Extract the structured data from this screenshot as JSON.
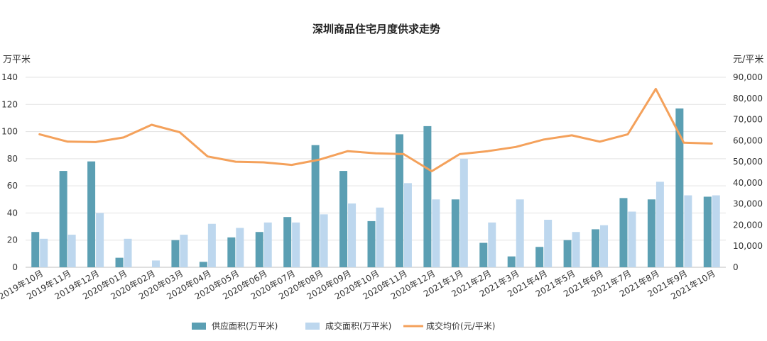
{
  "chart_data": {
    "type": "bar",
    "title": "深圳商品住宅月度供求走势",
    "y_left_unit": "万平米",
    "y_right_unit": "元/平米",
    "y_left_ticks": [
      "0",
      "20",
      "40",
      "60",
      "80",
      "100",
      "120",
      "140"
    ],
    "y_right_ticks": [
      "0",
      "10,000",
      "20,000",
      "30,000",
      "40,000",
      "50,000",
      "60,000",
      "70,000",
      "80,000",
      "90,000"
    ],
    "ylim_left": [
      0,
      140
    ],
    "ylim_right": [
      0,
      90000
    ],
    "categories": [
      "2019年10月",
      "2019年11月",
      "2019年12月",
      "2020年01月",
      "2020年02月",
      "2020年03月",
      "2020年04月",
      "2020年05月",
      "2020年06月",
      "2020年07月",
      "2020年08月",
      "2020年09月",
      "2020年10月",
      "2020年11月",
      "2020年12月",
      "2021年1月",
      "2021年2月",
      "2021年3月",
      "2021年4月",
      "2021年5月",
      "2021年6月",
      "2021年7月",
      "2021年8月",
      "2021年9月",
      "2021年10月"
    ],
    "series": [
      {
        "name": "供应面积(万平米)",
        "type": "bar",
        "axis": "left",
        "color": "#5b9fb3",
        "values": [
          26,
          71,
          78,
          7,
          0,
          20,
          4,
          22,
          26,
          37,
          90,
          71,
          34,
          98,
          104,
          50,
          18,
          8,
          15,
          20,
          28,
          51,
          50,
          117,
          52
        ]
      },
      {
        "name": "成交面积(万平米)",
        "type": "bar",
        "axis": "left",
        "color": "#bdd7ee",
        "values": [
          21,
          24,
          40,
          21,
          5,
          24,
          32,
          29,
          33,
          33,
          39,
          47,
          44,
          62,
          50,
          80,
          33,
          50,
          35,
          26,
          31,
          41,
          63,
          53,
          53
        ]
      },
      {
        "name": "成交均价(元/平米)",
        "type": "line",
        "axis": "right",
        "color": "#f4a15b",
        "values": [
          63000,
          59500,
          59300,
          61500,
          67500,
          64000,
          52500,
          50000,
          49700,
          48500,
          51000,
          55000,
          54000,
          53600,
          45500,
          53600,
          55000,
          57000,
          60500,
          62500,
          59500,
          63000,
          84500,
          59000,
          58600
        ]
      }
    ],
    "legend_position": "bottom",
    "grid": "horizontal"
  }
}
